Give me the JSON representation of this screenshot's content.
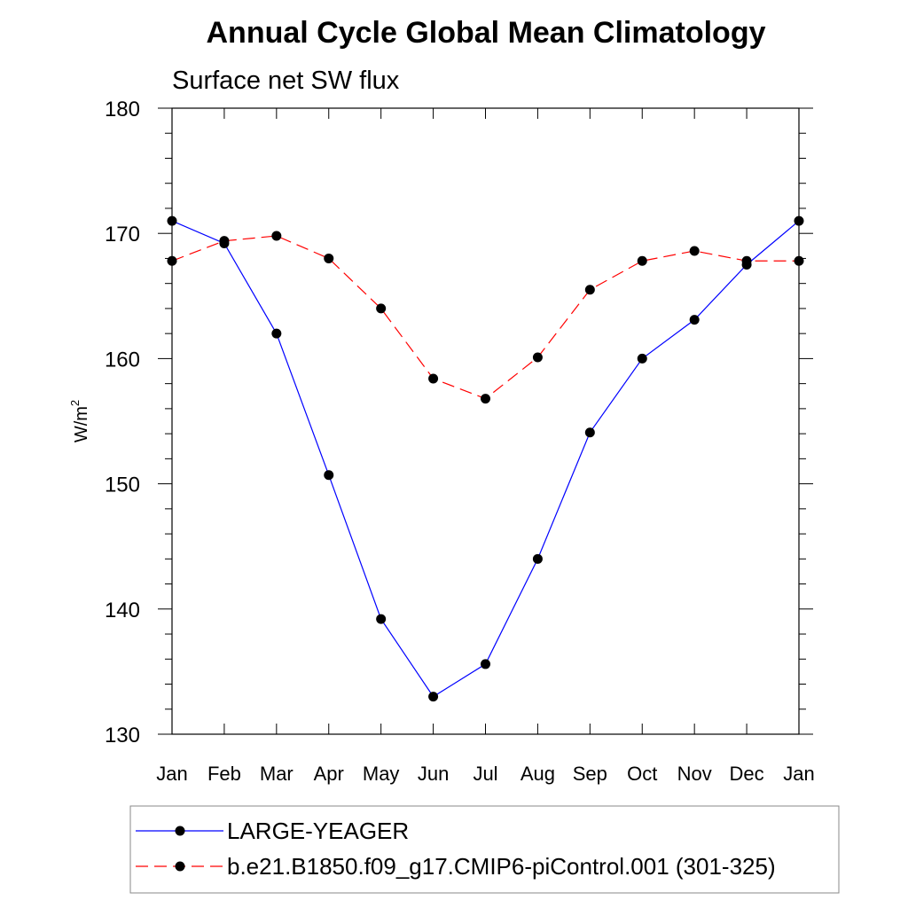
{
  "chart_data": {
    "type": "line",
    "title": "Annual Cycle Global Mean Climatology",
    "subtitle": "Surface net SW flux",
    "ylabel_base": "W/m",
    "ylabel_sup": "2",
    "categories": [
      "Jan",
      "Feb",
      "Mar",
      "Apr",
      "May",
      "Jun",
      "Jul",
      "Aug",
      "Sep",
      "Oct",
      "Nov",
      "Dec",
      "Jan"
    ],
    "ylim": [
      130,
      180
    ],
    "yticks": [
      130,
      140,
      150,
      160,
      170,
      180
    ],
    "grid": false,
    "legend_placement": "bottom",
    "series": [
      {
        "name": "LARGE-YEAGER",
        "color": "#0000ff",
        "dash": "solid",
        "values": [
          171.0,
          169.2,
          162.0,
          150.7,
          139.2,
          133.0,
          135.6,
          144.0,
          154.1,
          160.0,
          163.1,
          167.5,
          171.0
        ]
      },
      {
        "name": "b.e21.B1850.f09_g17.CMIP6-piControl.001 (301-325)",
        "color": "#ff0000",
        "dash": "dashed",
        "values": [
          167.8,
          169.4,
          169.8,
          168.0,
          164.0,
          158.4,
          156.8,
          160.1,
          165.5,
          167.8,
          168.6,
          167.8,
          167.8
        ]
      }
    ]
  }
}
